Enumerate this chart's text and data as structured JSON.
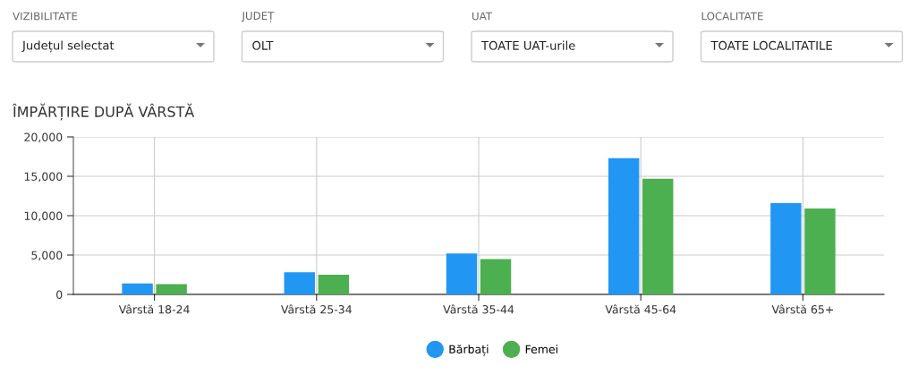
{
  "chart_data": {
    "type": "bar",
    "title": "ÎMPĂRȚIRE DUPĂ VÂRSTĂ",
    "categories": [
      "Vârstă 18-24",
      "Vârstă 25-34",
      "Vârstă 35-44",
      "Vârstă 45-64",
      "Vârstă 65+"
    ],
    "series": [
      {
        "name": "Bărbați",
        "color": "#2196f3",
        "values": [
          1400,
          2800,
          5200,
          17300,
          11600
        ]
      },
      {
        "name": "Femei",
        "color": "#4caf50",
        "values": [
          1300,
          2500,
          4500,
          14700,
          10900
        ]
      }
    ],
    "ylim": [
      0,
      20000
    ],
    "yticks": [
      {
        "value": 0,
        "label": "0"
      },
      {
        "value": 5000,
        "label": "5,000"
      },
      {
        "value": 10000,
        "label": "10,000"
      },
      {
        "value": 15000,
        "label": "15,000"
      },
      {
        "value": 20000,
        "label": "20,000"
      }
    ],
    "grid": true,
    "legend": "bottom",
    "annotations": [
      "VIZIBILITATE",
      "Județul selectat",
      "JUDEȚ",
      "OLT",
      "UAT",
      "TOATE UAT-urile",
      "LOCALITATE",
      "TOATE LOCALITATILE"
    ]
  }
}
